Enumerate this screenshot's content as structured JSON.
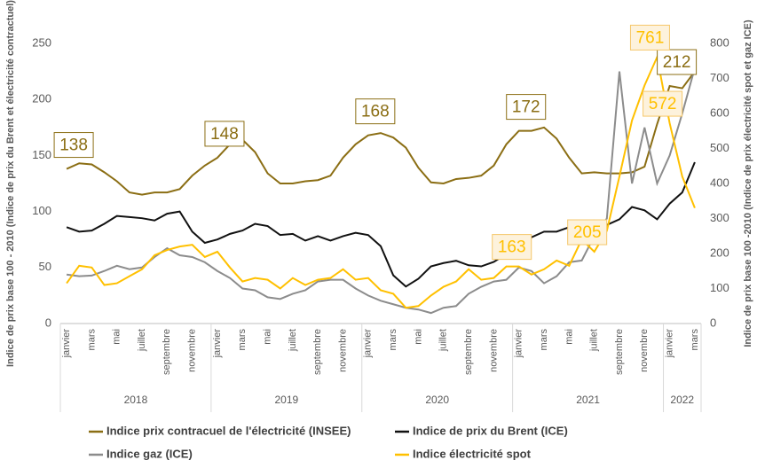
{
  "chart_data": {
    "type": "line",
    "y_label": "Indice de prix base 100 - 2010 (Indice de prix du Brent et électricité contractuel)",
    "y2_label": "Indice de prix base 100 -2010 (Indice de prix électricité spot et gaz ICE)",
    "categories": [
      "janvier",
      null,
      "mars",
      null,
      "mai",
      null,
      "juillet",
      null,
      "septembre",
      null,
      "novembre",
      null,
      "janvier",
      null,
      "mars",
      null,
      "mai",
      null,
      "juillet",
      null,
      "septembre",
      null,
      "novembre",
      null,
      "janvier",
      null,
      "mars",
      null,
      "mai",
      null,
      "juillet",
      null,
      "septembre",
      null,
      "novembre",
      null,
      "janvier",
      null,
      "mars",
      null,
      "mai",
      null,
      "juillet",
      null,
      "septembre",
      null,
      "novembre",
      null,
      "janvier",
      null,
      "mars"
    ],
    "years": [
      "2018",
      "2019",
      "2020",
      "2021",
      "2022"
    ],
    "ylim": [
      0,
      250
    ],
    "yticks": [
      0,
      50,
      100,
      150,
      200,
      250
    ],
    "y2lim": [
      0,
      800
    ],
    "y2ticks": [
      0,
      100,
      200,
      300,
      400,
      500,
      600,
      700,
      800
    ],
    "series": [
      {
        "name": "Indice prix contracuel de l'électricité (INSEE)",
        "color": "#8b6e14",
        "values": [
          138,
          143,
          142,
          135,
          127,
          117,
          115,
          117,
          117,
          120,
          132,
          141,
          148,
          160,
          164,
          153,
          134,
          125,
          125,
          127,
          128,
          132,
          148,
          160,
          168,
          170,
          166,
          157,
          139,
          126,
          125,
          129,
          130,
          132,
          141,
          160,
          172,
          172,
          175,
          165,
          148,
          134,
          135,
          134,
          134,
          135,
          140,
          178,
          212,
          210,
          225
        ],
        "value_labels": [
          "138",
          null,
          null,
          null,
          null,
          null,
          null,
          null,
          null,
          null,
          null,
          null,
          "148",
          null,
          null,
          null,
          null,
          null,
          null,
          null,
          null,
          null,
          null,
          null,
          "168",
          null,
          null,
          null,
          null,
          null,
          null,
          null,
          null,
          null,
          null,
          null,
          "172",
          null,
          null,
          null,
          null,
          null,
          null,
          null,
          null,
          null,
          null,
          null,
          "212",
          null,
          null
        ]
      },
      {
        "name": "Indice de prix du Brent (ICE)",
        "color": "#111111",
        "values": [
          86,
          82,
          83,
          89,
          96,
          95,
          94,
          92,
          98,
          100,
          82,
          72,
          75,
          80,
          83,
          89,
          87,
          79,
          80,
          74,
          78,
          74,
          78,
          81,
          79,
          69,
          43,
          33,
          40,
          51,
          54,
          56,
          52,
          51,
          55,
          62,
          66,
          77,
          82,
          82,
          86,
          91,
          92,
          88,
          93,
          104,
          101,
          93,
          107,
          117,
          144
        ]
      },
      {
        "name": "Indice gaz (ICE)",
        "color": "#8c8c8c",
        "axis": "y2",
        "values": [
          140,
          135,
          137,
          150,
          165,
          155,
          160,
          190,
          215,
          195,
          190,
          175,
          150,
          130,
          100,
          95,
          75,
          70,
          85,
          95,
          120,
          125,
          125,
          100,
          80,
          65,
          55,
          45,
          40,
          30,
          45,
          50,
          85,
          105,
          120,
          125,
          160,
          150,
          115,
          135,
          175,
          180,
          250,
          300,
          720,
          400,
          560,
          400,
          480,
          600,
          730
        ]
      },
      {
        "name": "Indice électricité spot",
        "color": "#ffc000",
        "axis": "y2",
        "values": [
          115,
          165,
          160,
          110,
          115,
          135,
          155,
          195,
          210,
          220,
          225,
          190,
          205,
          160,
          120,
          130,
          125,
          100,
          130,
          110,
          125,
          130,
          155,
          125,
          130,
          95,
          85,
          45,
          50,
          80,
          105,
          120,
          155,
          125,
          130,
          163,
          163,
          140,
          155,
          180,
          165,
          240,
          205,
          265,
          420,
          580,
          680,
          761,
          572,
          420,
          330
        ],
        "value_labels": [
          null,
          null,
          null,
          null,
          null,
          null,
          null,
          null,
          null,
          null,
          null,
          null,
          null,
          null,
          null,
          null,
          null,
          null,
          null,
          null,
          null,
          null,
          null,
          null,
          null,
          null,
          null,
          null,
          null,
          null,
          null,
          null,
          null,
          null,
          null,
          null,
          "163",
          null,
          null,
          null,
          null,
          null,
          "205",
          null,
          null,
          null,
          null,
          "761",
          "572",
          null,
          null
        ]
      }
    ]
  }
}
